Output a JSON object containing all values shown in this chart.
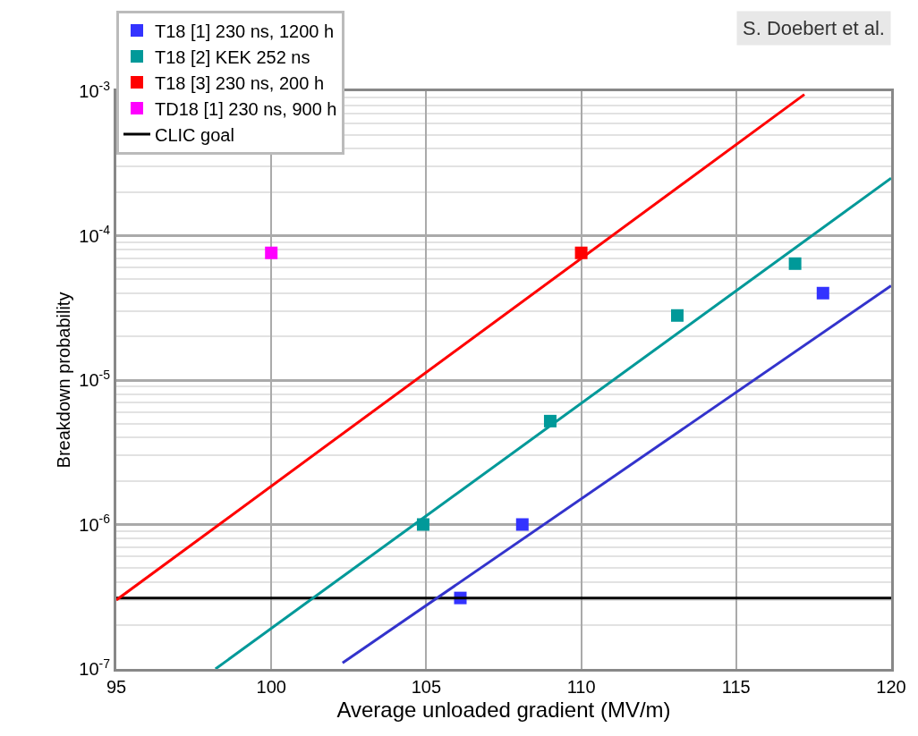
{
  "chart_data": {
    "type": "scatter",
    "xlabel": "Average unloaded gradient (MV/m)",
    "ylabel": "Breakdown probability",
    "annotations": [
      "S. Doebert et al."
    ],
    "log": "y",
    "grid": true,
    "legend": "top left",
    "marker": "square",
    "xlim": [
      95,
      120
    ],
    "xticks": [
      95,
      100,
      105,
      110,
      115,
      120
    ],
    "ylim": [
      1e-07,
      0.001
    ],
    "yticks": [
      {
        "value": 1e-07,
        "label": "10$^{-7}$"
      },
      {
        "value": 1e-06,
        "label": "10$^{-6}$"
      },
      {
        "value": 1e-05,
        "label": "10$^{-5}$"
      },
      {
        "value": 0.0001,
        "label": "10$^{-4}$"
      },
      {
        "value": 0.001,
        "label": "10$^{-3}$"
      }
    ],
    "series": [
      {
        "name": "T18 [1] 230 ns, 1200 h",
        "color": "#3333ff",
        "x": [
          106.1,
          108.1,
          117.8
        ],
        "values": [
          3.1e-07,
          1e-06,
          4e-05
        ]
      },
      {
        "name": "T18 [2] KEK 252 ns",
        "color": "#009999",
        "x": [
          104.9,
          109,
          113.1,
          116.9
        ],
        "values": [
          1e-06,
          5.2e-06,
          2.8e-05,
          6.4e-05
        ]
      },
      {
        "name": "T18 [3] 230 ns, 200 h",
        "color": "#ff0000",
        "x": [
          110
        ],
        "values": [
          7.6e-05
        ]
      },
      {
        "name": "TD18 [1] 230 ns, 900 h",
        "color": "#ff00ff",
        "x": [
          100
        ],
        "values": [
          7.6e-05
        ]
      },
      {
        "name": "CLIC goal",
        "type": "line",
        "marker": "none",
        "color": "#000000",
        "x": [
          95,
          120
        ],
        "values": [
          3.1e-07,
          3.1e-07
        ]
      },
      {
        "type": "line",
        "marker": "none",
        "color": "#ff0000",
        "x": [
          95,
          117.2
        ],
        "values": [
          3e-07,
          0.00095
        ]
      },
      {
        "type": "line",
        "marker": "none",
        "color": "#009999",
        "x": [
          98.2,
          120
        ],
        "values": [
          1e-07,
          0.00025
        ]
      },
      {
        "type": "line",
        "marker": "none",
        "color": "#3333cc",
        "x": [
          102.3,
          120
        ],
        "values": [
          1.1e-07,
          4.5e-05
        ]
      }
    ]
  }
}
